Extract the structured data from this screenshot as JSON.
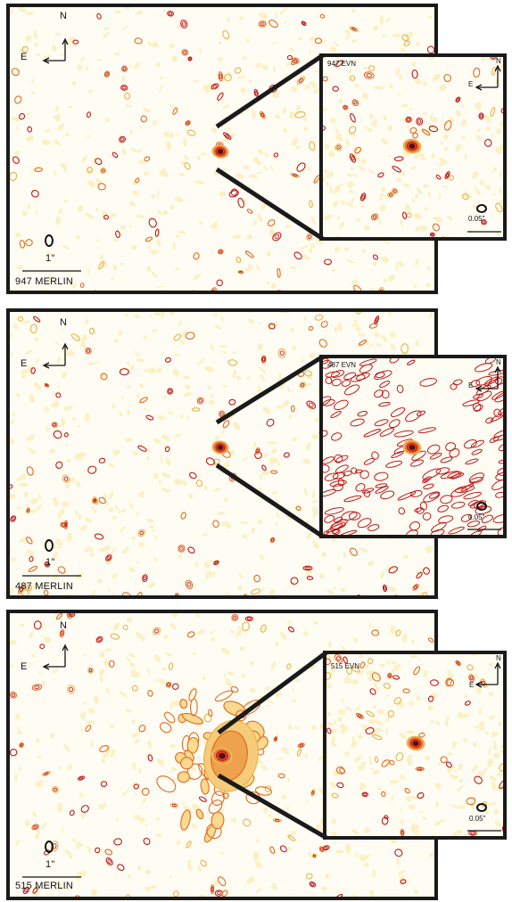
{
  "panels": [
    {
      "merlin_label": "947 MERLIN",
      "evn_label": "947 EVN",
      "merlin_scale": "1\"",
      "evn_scale": "0.05\"",
      "north": "N",
      "east": "E"
    },
    {
      "merlin_label": "487 MERLIN",
      "evn_label": "487 EVN",
      "merlin_scale": "1\"",
      "evn_scale": "0.05\"",
      "north": "N",
      "east": "E"
    },
    {
      "merlin_label": "515 MERLIN",
      "evn_label": "515 EVN",
      "merlin_scale": "1\"",
      "evn_scale": "0.05\"",
      "north": "N",
      "east": "E"
    }
  ],
  "colors": {
    "frame": "#1a1a1a",
    "contour_outer": "#e8b24a",
    "contour_mid": "#e06a1f",
    "contour_inner": "#c0181a",
    "background": "#fffdf3",
    "faint": "#fbf1c6"
  }
}
